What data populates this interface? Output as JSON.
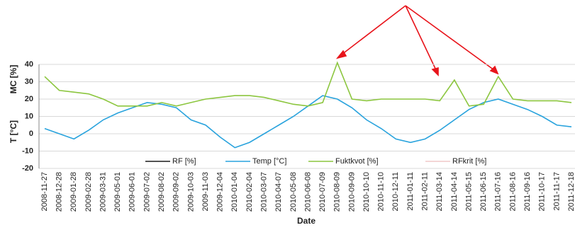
{
  "chart_data": {
    "type": "line",
    "xlabel": "Date",
    "ylabels": [
      "MC [%]",
      "T [°C]"
    ],
    "categories": [
      "2008-11-27",
      "2008-12-28",
      "2009-01-28",
      "2009-02-28",
      "2009-03-31",
      "2009-05-01",
      "2009-06-01",
      "2009-07-02",
      "2009-08-02",
      "2009-09-02",
      "2009-10-03",
      "2009-11-03",
      "2009-12-04",
      "2010-01-04",
      "2010-02-04",
      "2010-03-07",
      "2010-04-07",
      "2010-05-08",
      "2010-06-08",
      "2010-07-09",
      "2010-08-09",
      "2010-09-09",
      "2010-10-10",
      "2010-11-10",
      "2010-12-11",
      "2011-01-11",
      "2011-02-11",
      "2011-03-14",
      "2011-04-14",
      "2011-05-15",
      "2011-06-15",
      "2011-07-16",
      "2011-08-16",
      "2011-09-16",
      "2011-10-17",
      "2011-11-17",
      "2011-12-18"
    ],
    "series": [
      {
        "name": "RF [%]",
        "color": "#1a1a1a",
        "values": [
          null,
          null,
          null,
          null,
          null,
          null,
          null,
          null,
          null,
          null,
          null,
          null,
          null,
          null,
          null,
          null,
          null,
          null,
          null,
          null,
          null,
          null,
          null,
          null,
          null,
          null,
          null,
          null,
          null,
          null,
          null,
          null,
          null,
          null,
          null,
          null,
          null
        ]
      },
      {
        "name": "Temp [°C]",
        "color": "#29a3dd",
        "values": [
          3,
          0,
          -3,
          2,
          8,
          12,
          15,
          18,
          17,
          15,
          8,
          5,
          -2,
          -8,
          -5,
          0,
          5,
          10,
          16,
          22,
          20,
          15,
          8,
          3,
          -3,
          -5,
          -3,
          2,
          8,
          14,
          18,
          20,
          17,
          14,
          10,
          5,
          4
        ]
      },
      {
        "name": "Fuktkvot [%]",
        "color": "#8cc63f",
        "values": [
          33,
          25,
          24,
          23,
          20,
          16,
          16,
          16,
          18,
          16,
          18,
          20,
          21,
          22,
          22,
          21,
          19,
          17,
          16,
          18,
          41,
          20,
          19,
          20,
          20,
          20,
          20,
          19,
          31,
          16,
          17,
          33,
          20,
          19,
          19,
          19,
          18
        ]
      },
      {
        "name": "RFkrit [%]",
        "color": "#f0c8c8",
        "values": [
          null,
          null,
          null,
          null,
          null,
          null,
          null,
          null,
          null,
          null,
          null,
          null,
          null,
          null,
          null,
          null,
          null,
          null,
          null,
          null,
          null,
          null,
          null,
          null,
          null,
          null,
          null,
          null,
          null,
          null,
          null,
          null,
          null,
          null,
          null,
          null,
          null
        ]
      }
    ],
    "ylim": [
      -20,
      40
    ],
    "yticks": [
      -20,
      -10,
      0,
      10,
      20,
      30,
      40
    ],
    "grid": true
  }
}
